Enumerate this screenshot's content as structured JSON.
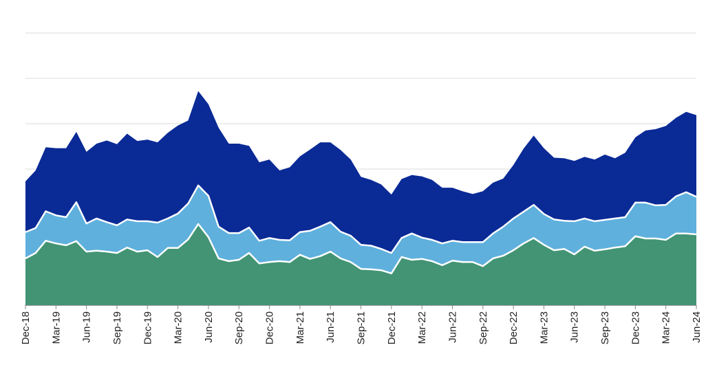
{
  "chart_data": {
    "type": "area",
    "stacked": true,
    "title": "",
    "xlabel": "",
    "ylabel": "",
    "ylim": [
      0,
      6
    ],
    "grid": true,
    "x_start_label": "Dec-18",
    "x": "monthly index 0..66",
    "tick_every_months": 3,
    "tick_labels": [
      "Dec-18",
      "Mar-19",
      "Jun-19",
      "Sep-19",
      "Dec-19",
      "Mar-20",
      "Jun-20",
      "Sep-20",
      "Dec-20",
      "Mar-21",
      "Jun-21",
      "Sep-21",
      "Dec-21",
      "Mar-22",
      "Jun-22",
      "Sep-22",
      "Dec-22",
      "Mar-23",
      "Jun-23",
      "Sep-23",
      "Dec-23",
      "Mar-24",
      "Jun-24"
    ],
    "series": [
      {
        "id": "bottom",
        "color": "#429474",
        "values": [
          1.03,
          1.15,
          1.42,
          1.36,
          1.32,
          1.41,
          1.18,
          1.2,
          1.18,
          1.15,
          1.27,
          1.18,
          1.21,
          1.06,
          1.26,
          1.26,
          1.45,
          1.79,
          1.5,
          1.03,
          0.97,
          1.0,
          1.15,
          0.92,
          0.95,
          0.97,
          0.95,
          1.11,
          1.02,
          1.08,
          1.18,
          1.03,
          0.95,
          0.8,
          0.79,
          0.77,
          0.7,
          1.06,
          1.0,
          1.02,
          0.97,
          0.88,
          0.98,
          0.95,
          0.95,
          0.86,
          1.03,
          1.09,
          1.21,
          1.36,
          1.48,
          1.33,
          1.21,
          1.24,
          1.12,
          1.29,
          1.2,
          1.23,
          1.27,
          1.3,
          1.52,
          1.47,
          1.47,
          1.44,
          1.58,
          1.58,
          1.56
        ]
      },
      {
        "id": "middle",
        "color": "#5fb0dd",
        "values": [
          0.58,
          0.55,
          0.65,
          0.62,
          0.62,
          0.86,
          0.62,
          0.71,
          0.65,
          0.61,
          0.62,
          0.67,
          0.64,
          0.76,
          0.65,
          0.76,
          0.79,
          0.85,
          0.91,
          0.7,
          0.62,
          0.59,
          0.56,
          0.5,
          0.53,
          0.47,
          0.48,
          0.5,
          0.62,
          0.65,
          0.65,
          0.59,
          0.58,
          0.53,
          0.52,
          0.47,
          0.45,
          0.42,
          0.58,
          0.47,
          0.47,
          0.48,
          0.44,
          0.44,
          0.44,
          0.53,
          0.55,
          0.64,
          0.7,
          0.7,
          0.73,
          0.68,
          0.68,
          0.62,
          0.73,
          0.62,
          0.65,
          0.65,
          0.64,
          0.64,
          0.74,
          0.79,
          0.73,
          0.77,
          0.82,
          0.91,
          0.83
        ]
      },
      {
        "id": "top",
        "color": "#0a2a96",
        "values": [
          1.12,
          1.27,
          1.41,
          1.48,
          1.52,
          1.55,
          1.58,
          1.65,
          1.8,
          1.79,
          1.89,
          1.77,
          1.8,
          1.77,
          1.89,
          1.94,
          1.83,
          2.08,
          2.02,
          2.18,
          1.97,
          1.97,
          1.8,
          1.73,
          1.73,
          1.53,
          1.61,
          1.67,
          1.79,
          1.86,
          1.76,
          1.8,
          1.68,
          1.5,
          1.45,
          1.42,
          1.29,
          1.3,
          1.29,
          1.35,
          1.32,
          1.23,
          1.17,
          1.12,
          1.06,
          1.12,
          1.12,
          1.06,
          1.18,
          1.39,
          1.53,
          1.45,
          1.36,
          1.38,
          1.33,
          1.36,
          1.36,
          1.44,
          1.33,
          1.42,
          1.44,
          1.59,
          1.68,
          1.74,
          1.73,
          1.77,
          1.8
        ]
      }
    ]
  }
}
